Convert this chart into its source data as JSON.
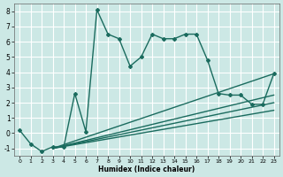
{
  "title": "",
  "xlabel": "Humidex (Indice chaleur)",
  "ylabel": "",
  "xlim": [
    -0.5,
    23.5
  ],
  "ylim": [
    -1.5,
    8.5
  ],
  "xticks": [
    0,
    1,
    2,
    3,
    4,
    5,
    6,
    7,
    8,
    9,
    10,
    11,
    12,
    13,
    14,
    15,
    16,
    17,
    18,
    19,
    20,
    21,
    22,
    23
  ],
  "yticks": [
    -1,
    0,
    1,
    2,
    3,
    4,
    5,
    6,
    7,
    8
  ],
  "bg_color": "#cce8e5",
  "grid_color": "#ffffff",
  "line_color": "#1a6b5e",
  "line_width": 1.0,
  "marker": "D",
  "marker_size": 2.0,
  "curves": [
    {
      "x": [
        0,
        1,
        2,
        3,
        4,
        5,
        6,
        7,
        8,
        9,
        10,
        11,
        12,
        13,
        14,
        15,
        16,
        17,
        18,
        19,
        20,
        21,
        22,
        23
      ],
      "y": [
        0.2,
        -0.7,
        -1.2,
        -0.9,
        -0.9,
        2.6,
        0.1,
        8.1,
        6.5,
        6.2,
        4.4,
        5.0,
        6.5,
        6.2,
        6.2,
        6.5,
        6.5,
        4.8,
        2.6,
        2.5,
        2.5,
        1.9,
        1.9,
        3.9
      ],
      "has_markers": true
    },
    {
      "x": [
        3,
        23
      ],
      "y": [
        -1.0,
        3.9
      ],
      "has_markers": false
    },
    {
      "x": [
        3,
        23
      ],
      "y": [
        -1.0,
        2.5
      ],
      "has_markers": false
    },
    {
      "x": [
        3,
        23
      ],
      "y": [
        -1.0,
        2.0
      ],
      "has_markers": false
    },
    {
      "x": [
        3,
        23
      ],
      "y": [
        -1.0,
        1.5
      ],
      "has_markers": false
    }
  ]
}
